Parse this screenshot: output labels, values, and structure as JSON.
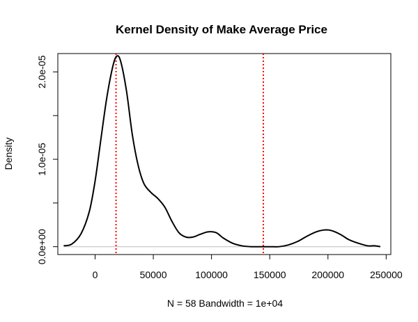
{
  "chart_data": {
    "type": "line",
    "title": "Kernel Density of Make Average Price",
    "xlabel": "N = 58   Bandwidth = 1e+04",
    "ylabel": "Density",
    "xlim": [
      -32000,
      254000
    ],
    "ylim": [
      -9e-07,
      2.21e-05
    ],
    "x_ticks": [
      0,
      50000,
      100000,
      150000,
      200000,
      250000
    ],
    "x_tick_labels": [
      "0",
      "50000",
      "100000",
      "150000",
      "200000",
      "250000"
    ],
    "y_ticks": [
      0,
      5e-06,
      1e-05,
      1.5e-05,
      2e-05
    ],
    "y_tick_labels": [
      "0.0e+00",
      "",
      "1.0e-05",
      "",
      "2.0e-05"
    ],
    "grid": false,
    "series": [
      {
        "color": "#000000",
        "line_style": "solid",
        "x": [
          -27000,
          -20000,
          -12000,
          -5000,
          0,
          5000,
          10000,
          15000,
          18500,
          22000,
          27000,
          32000,
          37000,
          42000,
          48000,
          54000,
          60000,
          66000,
          72000,
          78000,
          84000,
          90000,
          97000,
          104000,
          110000,
          118000,
          126000,
          134000,
          142000,
          150000,
          158000,
          166000,
          174000,
          182000,
          190000,
          196000,
          201000,
          206000,
          212000,
          218000,
          226000,
          234000,
          240000,
          245000
        ],
        "y": [
          1e-07,
          3e-07,
          1.5e-06,
          4e-06,
          7.5e-06,
          1.23e-05,
          1.7e-05,
          2.05e-05,
          2.18e-05,
          2.12e-05,
          1.78e-05,
          1.28e-05,
          9.3e-06,
          7.2e-06,
          6.2e-06,
          5.5e-06,
          4.5e-06,
          2.9e-06,
          1.6e-06,
          1.1e-06,
          1.1e-06,
          1.4e-06,
          1.7e-06,
          1.6e-06,
          1e-06,
          4e-07,
          1e-07,
          0.0,
          0.0,
          0.0,
          0.0,
          2e-07,
          6e-07,
          1.2e-06,
          1.7e-06,
          1.9e-06,
          1.9e-06,
          1.7e-06,
          1.3e-06,
          8e-07,
          4e-07,
          1e-07,
          1e-07,
          0.0
        ]
      }
    ],
    "vlines": [
      {
        "x": 18000,
        "color": "#ff0000",
        "style": "dotted"
      },
      {
        "x": 144500,
        "color": "#ff0000",
        "style": "dotted"
      }
    ],
    "baseline": {
      "y": 0,
      "color": "#bebebe"
    }
  }
}
